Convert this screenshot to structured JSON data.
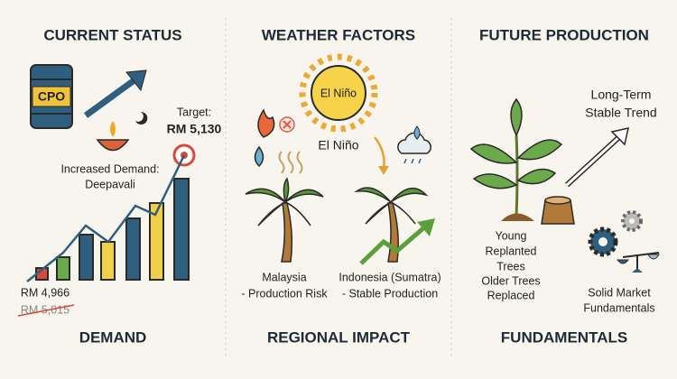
{
  "panels": [
    {
      "title": "CURRENT STATUS",
      "barrel_label": "CPO",
      "target": {
        "label": "Target:",
        "price": "RM 5,130"
      },
      "event": [
        "Increased Demand:",
        "Deepavali"
      ],
      "current_price": "RM 4,966",
      "previous_price": "RM 5,015",
      "footer": "DEMAND"
    },
    {
      "title": "WEATHER FACTORS",
      "sun_label": "El Niño",
      "caption": "El Niño",
      "regions": [
        {
          "lines": [
            "Malaysia",
            "- Production Risk"
          ]
        },
        {
          "lines": [
            "Indonesia (Sumatra)",
            "- Stable Production"
          ]
        }
      ],
      "footer": "REGIONAL IMPACT"
    },
    {
      "title": "FUTURE PRODUCTION",
      "trend": [
        "Long-Term",
        "Stable Trend"
      ],
      "trees": [
        "Young",
        "Replanted",
        "Trees",
        "Older Trees",
        "Replaced"
      ],
      "market": [
        "Solid Market",
        "Fundamentals"
      ],
      "footer": "FUNDAMENTALS"
    }
  ]
}
